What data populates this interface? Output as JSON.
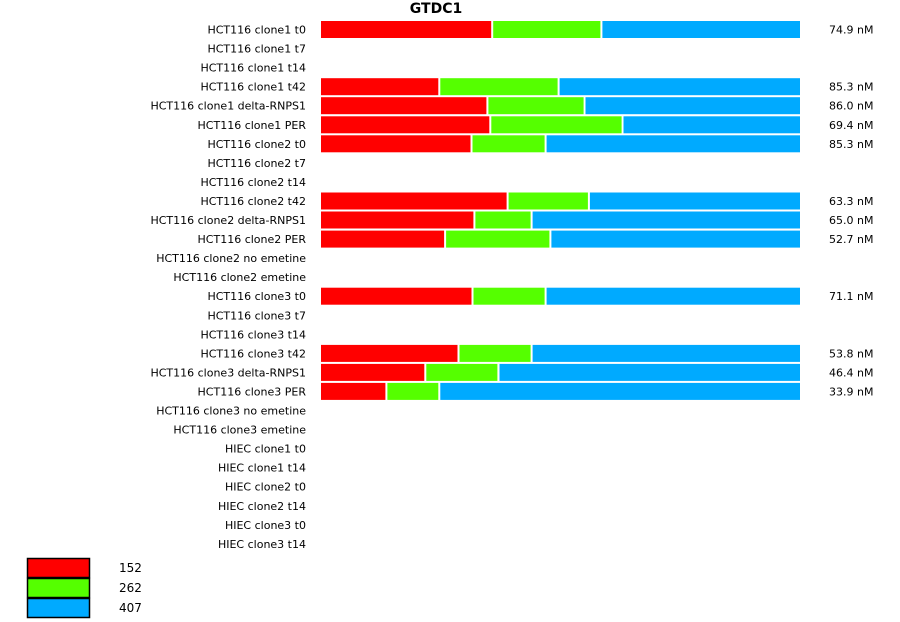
{
  "chart_data": {
    "type": "bar",
    "orientation": "horizontal",
    "stacked": "normalized",
    "title": "GTDC1",
    "xlabel": "",
    "ylabel": "",
    "grid": false,
    "legend_position": "bottom-left",
    "categories": [
      "HCT116 clone1 t0",
      "HCT116 clone1 t7",
      "HCT116 clone1 t14",
      "HCT116 clone1 t42",
      "HCT116 clone1 delta-RNPS1",
      "HCT116 clone1 PER",
      "HCT116 clone2 t0",
      "HCT116 clone2 t7",
      "HCT116 clone2 t14",
      "HCT116 clone2 t42",
      "HCT116 clone2 delta-RNPS1",
      "HCT116 clone2 PER",
      "HCT116 clone2 no emetine",
      "HCT116 clone2 emetine",
      "HCT116 clone3 t0",
      "HCT116 clone3 t7",
      "HCT116 clone3 t14",
      "HCT116 clone3 t42",
      "HCT116 clone3 delta-RNPS1",
      "HCT116 clone3 PER",
      "HCT116 clone3 no emetine",
      "HCT116 clone3 emetine",
      "HIEC clone1 t0",
      "HIEC clone1 t14",
      "HIEC clone2 t0",
      "HIEC clone2 t14",
      "HIEC clone3 t0",
      "HIEC clone3 t14"
    ],
    "series": [
      {
        "name": "152",
        "color": "#FF0000",
        "values": [
          0.358,
          null,
          null,
          0.248,
          0.348,
          0.354,
          0.315,
          null,
          null,
          0.39,
          0.321,
          0.26,
          null,
          null,
          0.317,
          null,
          null,
          0.288,
          0.219,
          0.138,
          null,
          null,
          null,
          null,
          null,
          null,
          null,
          null
        ]
      },
      {
        "name": "262",
        "color": "#55FF00",
        "values": [
          0.227,
          null,
          null,
          0.248,
          0.202,
          0.275,
          0.154,
          null,
          null,
          0.169,
          0.119,
          0.219,
          null,
          null,
          0.152,
          null,
          null,
          0.152,
          0.152,
          0.11,
          null,
          null,
          null,
          null,
          null,
          null,
          null,
          null
        ]
      },
      {
        "name": "407",
        "color": "#00AAFF",
        "values": [
          0.415,
          null,
          null,
          0.504,
          0.45,
          0.371,
          0.531,
          null,
          null,
          0.441,
          0.56,
          0.521,
          null,
          null,
          0.531,
          null,
          null,
          0.56,
          0.629,
          0.752,
          null,
          null,
          null,
          null,
          null,
          null,
          null,
          null
        ]
      }
    ],
    "value_labels": [
      "74.9 nM",
      "",
      "",
      "85.3 nM",
      "86.0 nM",
      "69.4 nM",
      "85.3 nM",
      "",
      "",
      "63.3 nM",
      "65.0 nM",
      "52.7 nM",
      "",
      "",
      "71.1 nM",
      "",
      "",
      "53.8 nM",
      "46.4 nM",
      "33.9 nM",
      "",
      "",
      "",
      "",
      "",
      "",
      "",
      ""
    ]
  }
}
